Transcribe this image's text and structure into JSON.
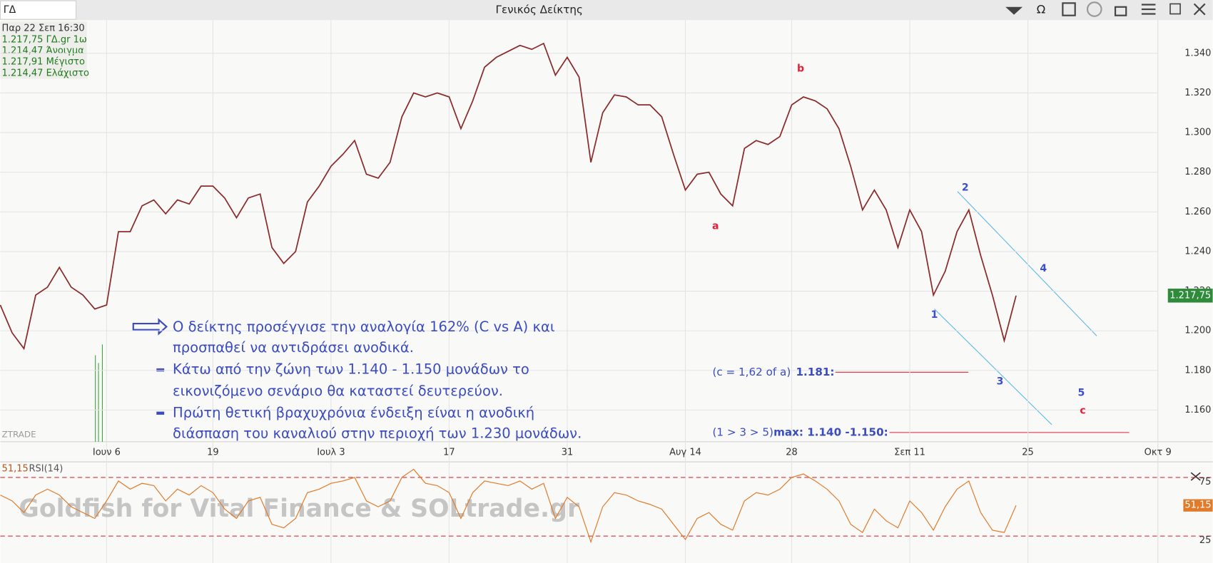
{
  "header": {
    "symbol": "ΓΔ",
    "title": "Γενικός Δείκτης",
    "omega": "Ω"
  },
  "info": [
    "Παρ 22 Σεπ 16:30",
    "1.217,75 ΓΔ.gr 1ω",
    "1.214,47 Άνοιγμα",
    "1.217,91 Μέγιστο",
    "1.214,47 Ελάχιστο"
  ],
  "chart_data": [
    {
      "type": "line",
      "color": "#8a2a2a",
      "x": [
        0,
        1,
        2,
        3,
        4,
        5,
        6,
        7,
        8,
        9,
        10,
        11,
        12,
        13,
        14,
        15,
        16,
        17,
        18,
        19,
        20,
        21,
        22,
        23,
        24,
        25,
        26,
        27,
        28,
        29,
        30,
        31,
        32,
        33,
        34,
        35,
        36,
        37,
        38,
        39,
        40,
        41,
        42,
        43,
        44,
        45,
        46,
        47,
        48,
        49,
        50,
        51,
        52,
        53,
        54,
        55,
        56,
        57,
        58,
        59,
        60,
        61,
        62,
        63,
        64,
        65,
        66,
        67,
        68,
        69,
        70,
        71,
        72,
        73,
        74,
        75,
        76,
        77,
        78,
        79,
        80,
        81,
        82,
        83,
        84,
        85,
        86
      ],
      "values": [
        1213,
        1199,
        1191,
        1218,
        1222,
        1232,
        1222,
        1218,
        1211,
        1213,
        1250,
        1250,
        1263,
        1266,
        1259,
        1266,
        1264,
        1273,
        1273,
        1267,
        1257,
        1267,
        1269,
        1242,
        1234,
        1240,
        1265,
        1273,
        1283,
        1289,
        1296,
        1279,
        1277,
        1285,
        1308,
        1320,
        1318,
        1320,
        1318,
        1302,
        1316,
        1333,
        1338,
        1341,
        1344,
        1342,
        1345,
        1329,
        1338,
        1328,
        1285,
        1310,
        1319,
        1318,
        1314,
        1314,
        1308,
        1289,
        1271,
        1279,
        1280,
        1269,
        1263,
        1292,
        1296,
        1294,
        1298,
        1314,
        1318,
        1316,
        1312,
        1302,
        1283,
        1261,
        1271,
        1261,
        1242,
        1261,
        1250,
        1218,
        1230,
        1250,
        1261,
        1238,
        1218,
        1195,
        1217.75
      ],
      "last_label": "1.217,75",
      "xlim": [
        0,
        98
      ],
      "xticks": [
        {
          "value": 9,
          "label": "Ιουν 6"
        },
        {
          "value": 18,
          "label": "19"
        },
        {
          "value": 28,
          "label": "Ιουλ 3"
        },
        {
          "value": 38,
          "label": "17"
        },
        {
          "value": 48,
          "label": "31"
        },
        {
          "value": 58,
          "label": "Αυγ 14"
        },
        {
          "value": 67,
          "label": "28"
        },
        {
          "value": 77,
          "label": "Σεπ 11"
        },
        {
          "value": 87,
          "label": "25"
        },
        {
          "value": 98,
          "label": "Οκτ 9"
        }
      ],
      "ylim": [
        1144,
        1356
      ],
      "yticks": [
        {
          "value": 1160,
          "label": "1.160"
        },
        {
          "value": 1180,
          "label": "1.180"
        },
        {
          "value": 1200,
          "label": "1.200"
        },
        {
          "value": 1220,
          "label": "1.220"
        },
        {
          "value": 1240,
          "label": "1.240"
        },
        {
          "value": 1260,
          "label": "1.260"
        },
        {
          "value": 1280,
          "label": "1.280"
        },
        {
          "value": 1300,
          "label": "1.300"
        },
        {
          "value": 1320,
          "label": "1.320"
        },
        {
          "value": 1340,
          "label": "1.340"
        }
      ],
      "grid": true,
      "annotations": [
        "a",
        "b",
        "1",
        "2",
        "3",
        "4",
        "5",
        "c"
      ],
      "notes": [
        "Ο δείκτης προσέγγισε την αναλογία 162% (C vs A) και",
        "προσπαθεί να αντιδράσει ανοδικά.",
        "Κάτω από την ζώνη των 1.140 - 1.150 μονάδων το",
        "εικονιζόμενο σενάριο θα καταστεί δευτερεύον.",
        "Πρώτη θετική βραχυχρόνια ένδειξη είναι η ανοδική",
        "διάσπαση του καναλιού στην περιοχή των 1.230 μονάδων."
      ],
      "levels": [
        [
          "(c = 1,62 of a)",
          "1.181:"
        ],
        [
          "(1 > 3 > 5)",
          "max: 1.140 -1.150:"
        ]
      ],
      "watermark": "ZTRADE"
    },
    {
      "type": "line",
      "title": "RSI(14)",
      "color": "#e07b2a",
      "x": [
        0,
        1,
        2,
        3,
        4,
        5,
        6,
        7,
        8,
        9,
        10,
        11,
        12,
        13,
        14,
        15,
        16,
        17,
        18,
        19,
        20,
        21,
        22,
        23,
        24,
        25,
        26,
        27,
        28,
        29,
        30,
        31,
        32,
        33,
        34,
        35,
        36,
        37,
        38,
        39,
        40,
        41,
        42,
        43,
        44,
        45,
        46,
        47,
        48,
        49,
        50,
        51,
        52,
        53,
        54,
        55,
        56,
        57,
        58,
        59,
        60,
        61,
        62,
        63,
        64,
        65,
        66,
        67,
        68,
        69,
        70,
        71,
        72,
        73,
        74,
        75,
        76,
        77,
        78,
        79,
        80,
        81,
        82,
        83,
        84,
        85,
        86
      ],
      "values": [
        60,
        55,
        45,
        60,
        65,
        60,
        50,
        45,
        40,
        55,
        72,
        65,
        70,
        68,
        55,
        65,
        60,
        68,
        62,
        48,
        40,
        55,
        58,
        35,
        32,
        40,
        62,
        65,
        70,
        72,
        75,
        55,
        50,
        55,
        75,
        82,
        70,
        68,
        62,
        40,
        62,
        72,
        70,
        68,
        72,
        65,
        70,
        40,
        58,
        50,
        20,
        50,
        62,
        60,
        55,
        52,
        48,
        35,
        22,
        40,
        45,
        35,
        30,
        55,
        62,
        60,
        65,
        75,
        78,
        72,
        65,
        55,
        35,
        28,
        48,
        38,
        32,
        55,
        45,
        30,
        50,
        65,
        72,
        45,
        30,
        28,
        51.15
      ],
      "value_label": "51,15",
      "xlim": [
        0,
        98
      ],
      "ylim": [
        2,
        87
      ],
      "yticks": [
        25,
        75
      ],
      "watermark": "Goldfish for Vital Finance & SOLtrade.gr"
    }
  ]
}
